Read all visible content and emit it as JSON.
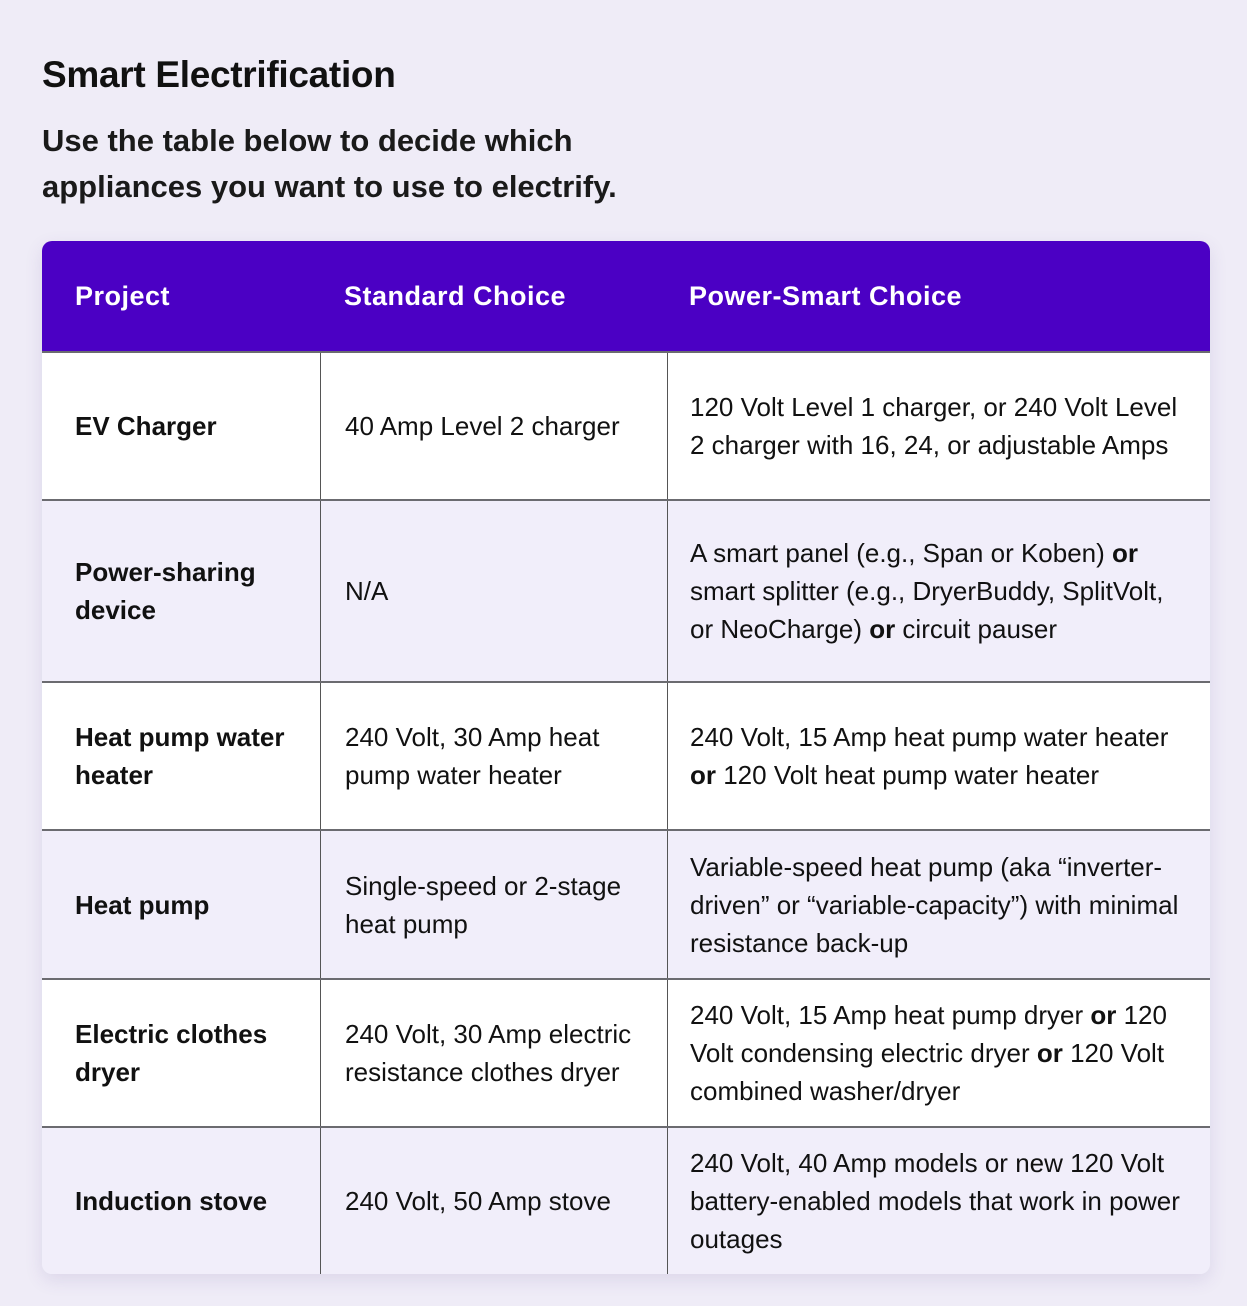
{
  "page": {
    "title": "Smart Electrification",
    "subtitle": "Use the table below to decide which appliances you want to use to electrify."
  },
  "colors": {
    "header_bg": "#4b00c4",
    "background": "#efecf7",
    "row_alt": "#f1eefa"
  },
  "table": {
    "headers": [
      "Project",
      "Standard Choice",
      "Power-Smart Choice"
    ],
    "rows": [
      {
        "project": "EV Charger",
        "standard": "40 Amp Level 2 charger",
        "smart": [
          {
            "text": "120 Volt Level 1 charger, or 240 Volt Level 2 charger with 16, 24, or adjustable Amps",
            "bold": false
          }
        ]
      },
      {
        "project": "Power-sharing device",
        "standard": "N/A",
        "smart": [
          {
            "text": "A smart panel (e.g., Span or Koben) ",
            "bold": false
          },
          {
            "text": "or",
            "bold": true
          },
          {
            "text": " smart splitter (e.g., DryerBuddy, SplitVolt, or NeoCharge) ",
            "bold": false
          },
          {
            "text": "or",
            "bold": true
          },
          {
            "text": " circuit pauser",
            "bold": false
          }
        ]
      },
      {
        "project": "Heat pump water heater",
        "standard": "240 Volt, 30 Amp heat pump water heater",
        "smart": [
          {
            "text": "240 Volt, 15 Amp heat pump water heater ",
            "bold": false
          },
          {
            "text": "or",
            "bold": true
          },
          {
            "text": " 120 Volt heat pump water heater",
            "bold": false
          }
        ]
      },
      {
        "project": "Heat pump",
        "standard": "Single-speed or 2-stage heat pump",
        "smart": [
          {
            "text": "Variable-speed heat pump (aka “inverter-driven” or “variable-capacity”) with minimal resistance back-up",
            "bold": false
          }
        ]
      },
      {
        "project": "Electric clothes dryer",
        "standard": "240 Volt, 30 Amp electric resistance clothes dryer",
        "smart": [
          {
            "text": "240 Volt, 15 Amp heat pump dryer ",
            "bold": false
          },
          {
            "text": "or",
            "bold": true
          },
          {
            "text": " 120 Volt condensing electric dryer ",
            "bold": false
          },
          {
            "text": "or",
            "bold": true
          },
          {
            "text": " 120 Volt combined washer/dryer",
            "bold": false
          }
        ]
      },
      {
        "project": "Induction stove",
        "standard": "240 Volt, 50 Amp stove",
        "smart": [
          {
            "text": "240 Volt, 40 Amp models or new 120 Volt battery-enabled models that work in power outages",
            "bold": false
          }
        ]
      }
    ]
  }
}
